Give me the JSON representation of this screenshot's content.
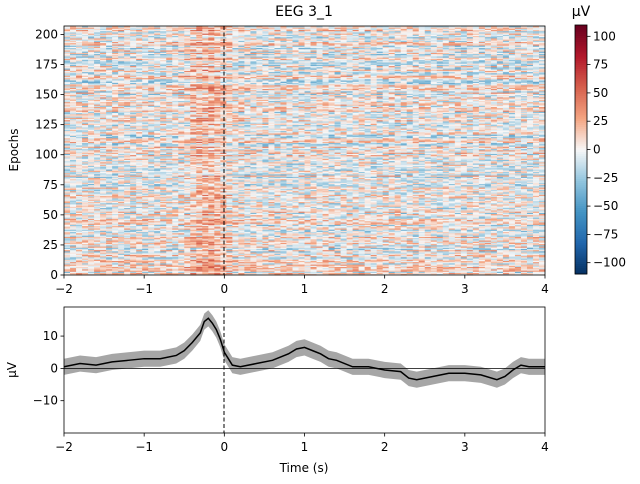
{
  "chart_data": [
    {
      "type": "heatmap",
      "title": "EEG 3_1",
      "xlabel": "",
      "ylabel": "Epochs",
      "xlim": [
        -2,
        4
      ],
      "ylim": [
        0,
        207
      ],
      "xticks": [
        -2,
        -1,
        0,
        1,
        2,
        3,
        4
      ],
      "xtick_labels": [
        "−2",
        "−1",
        "0",
        "1",
        "2",
        "3",
        "4"
      ],
      "yticks": [
        0,
        25,
        50,
        75,
        100,
        125,
        150,
        175,
        200
      ],
      "ytick_labels": [
        "0",
        "25",
        "50",
        "75",
        "100",
        "125",
        "150",
        "175",
        "200"
      ],
      "n_epochs": 207,
      "event_line_x": 0,
      "colormap": "RdBu_r",
      "colorbar": {
        "label": "µV",
        "range": [
          -110,
          110
        ],
        "ticks": [
          -100,
          -75,
          -50,
          -25,
          0,
          25,
          50,
          75,
          100
        ],
        "tick_labels": [
          "−100",
          "−75",
          "−50",
          "−25",
          "0",
          "25",
          "50",
          "75",
          "100"
        ]
      }
    },
    {
      "type": "line",
      "title": "",
      "xlabel": "Time (s)",
      "ylabel": "µV",
      "xlim": [
        -2,
        4
      ],
      "ylim": [
        -20,
        19
      ],
      "xticks": [
        -2,
        -1,
        0,
        1,
        2,
        3,
        4
      ],
      "xtick_labels": [
        "−2",
        "−1",
        "0",
        "1",
        "2",
        "3",
        "4"
      ],
      "yticks": [
        -10,
        0,
        10
      ],
      "ytick_labels": [
        "−10",
        "0",
        "10"
      ],
      "event_line_x": 0,
      "zero_line": true,
      "line_color": "#000000",
      "band_color": "#808080",
      "band_halfwidth": 2.5,
      "series": [
        {
          "x": [
            -2.0,
            -1.8,
            -1.6,
            -1.4,
            -1.2,
            -1.0,
            -0.8,
            -0.6,
            -0.5,
            -0.4,
            -0.3,
            -0.25,
            -0.2,
            -0.15,
            -0.1,
            -0.05,
            0.0,
            0.05,
            0.1,
            0.2,
            0.4,
            0.6,
            0.8,
            0.9,
            1.0,
            1.1,
            1.2,
            1.3,
            1.4,
            1.6,
            1.8,
            2.0,
            2.2,
            2.3,
            2.4,
            2.6,
            2.8,
            3.0,
            3.2,
            3.4,
            3.5,
            3.6,
            3.7,
            3.8,
            4.0
          ],
          "y": [
            0.5,
            1.5,
            1.0,
            2.0,
            2.5,
            3.0,
            3.0,
            4.0,
            5.5,
            8.0,
            11.0,
            14.5,
            15.5,
            14.0,
            12.0,
            9.0,
            5.0,
            3.0,
            1.0,
            0.5,
            1.5,
            2.5,
            4.5,
            6.0,
            6.5,
            5.5,
            4.5,
            3.0,
            2.5,
            0.5,
            0.5,
            -0.5,
            -1.0,
            -3.0,
            -3.5,
            -2.5,
            -1.5,
            -1.5,
            -2.0,
            -3.5,
            -2.5,
            -0.5,
            1.0,
            0.5,
            0.5
          ]
        }
      ]
    }
  ]
}
